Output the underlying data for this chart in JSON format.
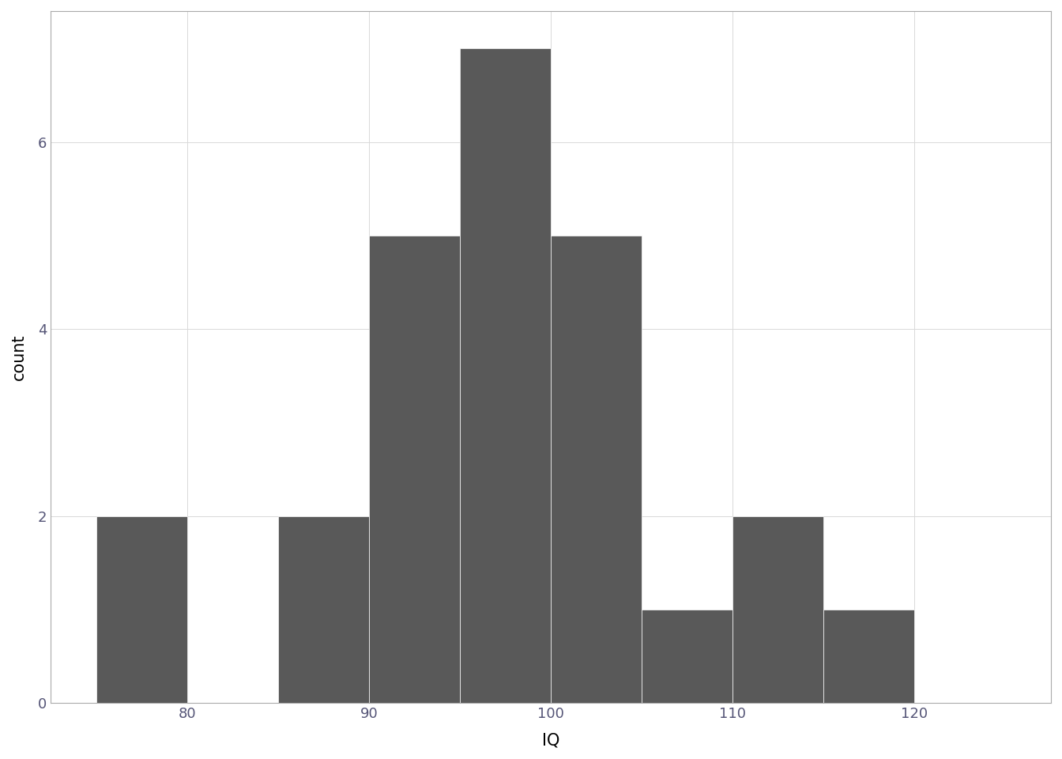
{
  "title": "",
  "xlabel": "IQ",
  "ylabel": "count",
  "bar_color": "#595959",
  "bar_edgecolor": "#ffffff",
  "background_color": "#ffffff",
  "panel_background": "#ffffff",
  "grid_color": "#d9d9d9",
  "bin_edges": [
    75,
    80,
    85,
    90,
    95,
    100,
    105,
    110,
    115,
    120,
    125
  ],
  "counts": [
    2,
    0,
    2,
    5,
    7,
    5,
    1,
    2,
    1,
    0
  ],
  "xlim": [
    72.5,
    127.5
  ],
  "ylim": [
    0,
    7.4
  ],
  "xticks": [
    80,
    90,
    100,
    110,
    120
  ],
  "yticks": [
    0,
    2,
    4,
    6
  ],
  "xlabel_fontsize": 15,
  "ylabel_fontsize": 15,
  "tick_fontsize": 13,
  "tick_color": "#555577",
  "spine_color": "#aaaaaa",
  "linewidth": 0.5
}
